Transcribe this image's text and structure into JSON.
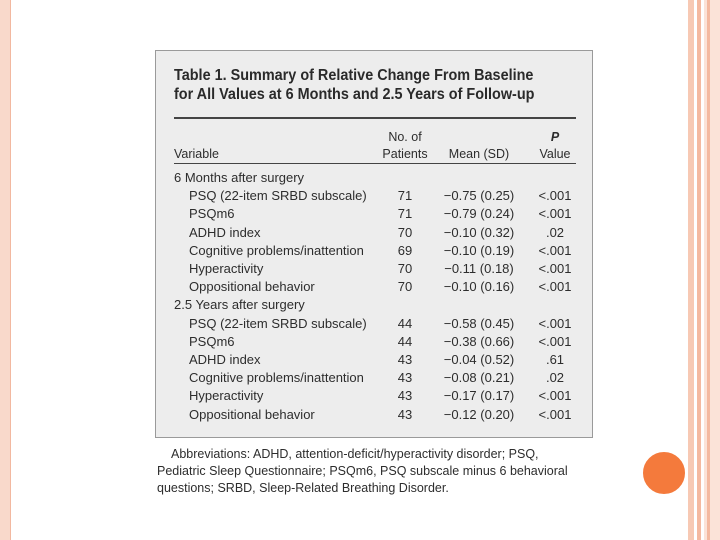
{
  "table": {
    "title_line1": "Table 1. Summary of Relative Change From Baseline",
    "title_line2": "for All Values at 6 Months and 2.5 Years of Follow-up",
    "headers": {
      "variable": "Variable",
      "patients_line1": "No. of",
      "patients_line2": "Patients",
      "mean": "Mean (SD)",
      "p_line1": "P",
      "p_line2": "Value"
    },
    "sections": [
      {
        "label": "6 Months after surgery",
        "rows": [
          {
            "variable": "PSQ (22-item SRBD subscale)",
            "patients": "71",
            "mean": "−0.75 (0.25)",
            "p": "<.001"
          },
          {
            "variable": "PSQm6",
            "patients": "71",
            "mean": "−0.79 (0.24)",
            "p": "<.001"
          },
          {
            "variable": "ADHD index",
            "patients": "70",
            "mean": "−0.10 (0.32)",
            "p": ".02"
          },
          {
            "variable": "Cognitive problems/inattention",
            "patients": "69",
            "mean": "−0.10 (0.19)",
            "p": "<.001"
          },
          {
            "variable": "Hyperactivity",
            "patients": "70",
            "mean": "−0.11 (0.18)",
            "p": "<.001"
          },
          {
            "variable": "Oppositional behavior",
            "patients": "70",
            "mean": "−0.10 (0.16)",
            "p": "<.001"
          }
        ]
      },
      {
        "label": "2.5 Years after surgery",
        "rows": [
          {
            "variable": "PSQ (22-item SRBD subscale)",
            "patients": "44",
            "mean": "−0.58 (0.45)",
            "p": "<.001"
          },
          {
            "variable": "PSQm6",
            "patients": "44",
            "mean": "−0.38 (0.66)",
            "p": "<.001"
          },
          {
            "variable": "ADHD index",
            "patients": "43",
            "mean": "−0.04 (0.52)",
            "p": ".61"
          },
          {
            "variable": "Cognitive problems/inattention",
            "patients": "43",
            "mean": "−0.08 (0.21)",
            "p": ".02"
          },
          {
            "variable": "Hyperactivity",
            "patients": "43",
            "mean": "−0.17 (0.17)",
            "p": "<.001"
          },
          {
            "variable": "Oppositional behavior",
            "patients": "43",
            "mean": "−0.12 (0.20)",
            "p": "<.001"
          }
        ]
      }
    ],
    "abbreviations": "Abbreviations: ADHD, attention-deficit/hyperactivity disorder; PSQ, Pediatric Sleep Questionnaire; PSQm6, PSQ subscale minus 6 behavioral questions; SRBD, Sleep-Related Breathing Disorder."
  },
  "colors": {
    "accent_dot": "#f47a3c",
    "frame": "#f7c9b4",
    "panel": "#ededed"
  }
}
